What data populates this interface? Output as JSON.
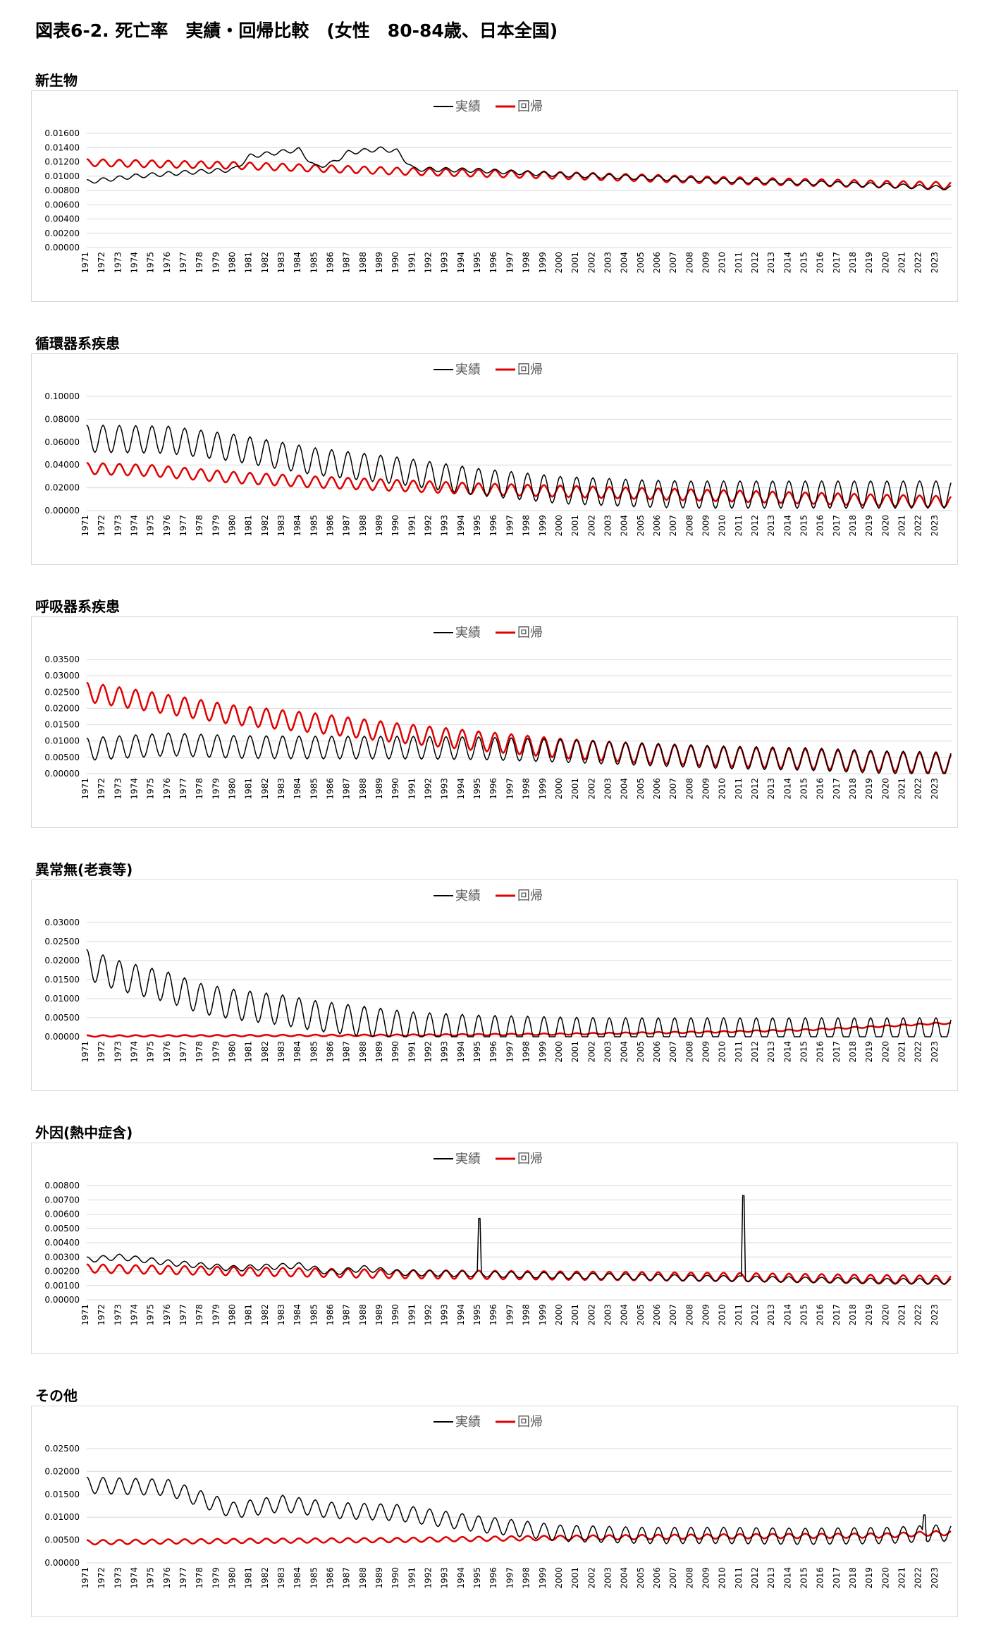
{
  "title": "図表6-2. 死亡率　実績・回帰比較　(女性　80-84歳、日本全国)",
  "legend": {
    "actual": "実績",
    "regression": "回帰"
  },
  "colors": {
    "actual": "#000000",
    "regression": "#e00000",
    "grid": "#d9d9d9"
  },
  "years": [
    "1971",
    "1972",
    "1973",
    "1974",
    "1975",
    "1976",
    "1977",
    "1978",
    "1979",
    "1980",
    "1981",
    "1982",
    "1983",
    "1984",
    "1985",
    "1986",
    "1987",
    "1988",
    "1989",
    "1990",
    "1991",
    "1992",
    "1993",
    "1994",
    "1995",
    "1996",
    "1997",
    "1998",
    "1999",
    "2000",
    "2001",
    "2002",
    "2003",
    "2004",
    "2005",
    "2006",
    "2007",
    "2008",
    "2009",
    "2010",
    "2011",
    "2012",
    "2013",
    "2014",
    "2015",
    "2016",
    "2017",
    "2018",
    "2019",
    "2020",
    "2021",
    "2022",
    "2023"
  ],
  "chart_data": [
    {
      "type": "line",
      "title": "新生物",
      "x_range": [
        "1971-01",
        "2023-12"
      ],
      "ylim": [
        0,
        0.016
      ],
      "yticks": [
        "0.01600",
        "0.01400",
        "0.01200",
        "0.01000",
        "0.00800",
        "0.00600",
        "0.00400",
        "0.00200",
        "0.00000"
      ],
      "grid": true,
      "legend_position": "top-center",
      "series": [
        {
          "name": "実績",
          "points": [
            [
              1971,
              0.0092
            ],
            [
              1974,
              0.01
            ],
            [
              1977,
              0.0105
            ],
            [
              1980,
              0.0109
            ],
            [
              1981,
              0.0128
            ],
            [
              1984,
              0.0137
            ],
            [
              1985,
              0.0113
            ],
            [
              1986,
              0.0118
            ],
            [
              1987,
              0.0133
            ],
            [
              1989,
              0.0138
            ],
            [
              1990,
              0.0135
            ],
            [
              1991,
              0.011
            ],
            [
              1995,
              0.0108
            ],
            [
              2000,
              0.0102
            ],
            [
              2005,
              0.0098
            ],
            [
              2010,
              0.0094
            ],
            [
              2015,
              0.0091
            ],
            [
              2020,
              0.0087
            ],
            [
              2023,
              0.0084
            ]
          ],
          "seasonal_amplitude": 0.0003
        },
        {
          "name": "回帰",
          "points": [
            [
              1971,
              0.0119
            ],
            [
              1980,
              0.0115
            ],
            [
              1990,
              0.0107
            ],
            [
              2000,
              0.0101
            ],
            [
              2010,
              0.0094
            ],
            [
              2023,
              0.0087
            ]
          ],
          "seasonal_amplitude": 0.0005
        }
      ]
    },
    {
      "type": "line",
      "title": "循環器系疾患",
      "x_range": [
        "1971-01",
        "2023-12"
      ],
      "ylim": [
        0,
        0.1
      ],
      "yticks": [
        "0.10000",
        "0.08000",
        "0.06000",
        "0.04000",
        "0.02000",
        "0.00000"
      ],
      "grid": true,
      "legend_position": "top-center",
      "series": [
        {
          "name": "実績",
          "points": [
            [
              1971,
              0.063
            ],
            [
              1976,
              0.062
            ],
            [
              1980,
              0.055
            ],
            [
              1985,
              0.043
            ],
            [
              1990,
              0.035
            ],
            [
              1995,
              0.025
            ],
            [
              2000,
              0.018
            ],
            [
              2005,
              0.015
            ],
            [
              2008,
              0.014
            ]
          ],
          "seasonal_amplitude": 0.012
        },
        {
          "name": "回帰",
          "points": [
            [
              1971,
              0.037
            ],
            [
              1975,
              0.035
            ],
            [
              1980,
              0.029
            ],
            [
              1985,
              0.025
            ],
            [
              1990,
              0.022
            ],
            [
              1995,
              0.019
            ],
            [
              2000,
              0.017
            ],
            [
              2005,
              0.015
            ],
            [
              2010,
              0.013
            ],
            [
              2015,
              0.011
            ],
            [
              2020,
              0.009
            ],
            [
              2023,
              0.008
            ]
          ],
          "seasonal_amplitude": 0.005
        }
      ]
    },
    {
      "type": "line",
      "title": "呼吸器系疾患",
      "x_range": [
        "1971-01",
        "2023-12"
      ],
      "ylim": [
        0,
        0.035
      ],
      "yticks": [
        "0.03500",
        "0.03000",
        "0.02500",
        "0.02000",
        "0.01500",
        "0.01000",
        "0.00500",
        "0.00000"
      ],
      "grid": true,
      "legend_position": "top-center",
      "series": [
        {
          "name": "実績",
          "points": [
            [
              1971,
              0.0075
            ],
            [
              1976,
              0.009
            ],
            [
              1980,
              0.0082
            ],
            [
              1985,
              0.008
            ],
            [
              1990,
              0.008
            ],
            [
              1995,
              0.0078
            ],
            [
              2000,
              0.007
            ],
            [
              2005,
              0.006
            ],
            [
              2010,
              0.005
            ],
            [
              2015,
              0.0045
            ],
            [
              2020,
              0.0035
            ],
            [
              2023,
              0.0032
            ]
          ],
          "seasonal_amplitude": 0.0035
        },
        {
          "name": "回帰",
          "points": [
            [
              1971,
              0.025
            ],
            [
              1975,
              0.022
            ],
            [
              1980,
              0.018
            ],
            [
              1985,
              0.0155
            ],
            [
              1990,
              0.0125
            ],
            [
              1995,
              0.01
            ],
            [
              2000,
              0.0078
            ],
            [
              2005,
              0.0062
            ],
            [
              2010,
              0.0052
            ],
            [
              2015,
              0.0045
            ],
            [
              2020,
              0.0037
            ],
            [
              2023,
              0.0032
            ]
          ],
          "seasonal_amplitude": 0.003
        }
      ]
    },
    {
      "type": "line",
      "title": "異常無(老衰等)",
      "x_range": [
        "1971-01",
        "2023-12"
      ],
      "ylim": [
        0,
        0.03
      ],
      "yticks": [
        "0.03000",
        "0.02500",
        "0.02000",
        "0.01500",
        "0.01000",
        "0.00500",
        "0.00000"
      ],
      "grid": true,
      "legend_position": "top-center",
      "series": [
        {
          "name": "実績",
          "points": [
            [
              1971,
              0.019
            ],
            [
              1973,
              0.016
            ],
            [
              1976,
              0.013
            ],
            [
              1978,
              0.01
            ],
            [
              1980,
              0.0085
            ],
            [
              1983,
              0.007
            ],
            [
              1985,
              0.0055
            ],
            [
              1987,
              0.0045
            ],
            [
              1989,
              0.0035
            ],
            [
              1991,
              0.0025
            ],
            [
              1995,
              0.0017
            ],
            [
              2000,
              0.0012
            ],
            [
              2003,
              0.001
            ]
          ],
          "seasonal_amplitude": 0.004
        },
        {
          "name": "回帰",
          "points": [
            [
              1971,
              0.0002
            ],
            [
              1990,
              0.0004
            ],
            [
              2000,
              0.0007
            ],
            [
              2010,
              0.0013
            ],
            [
              2015,
              0.0018
            ],
            [
              2020,
              0.0028
            ],
            [
              2023,
              0.0035
            ]
          ],
          "seasonal_amplitude": 0.0002
        }
      ]
    },
    {
      "type": "line",
      "title": "外因(熱中症含)",
      "x_range": [
        "1971-01",
        "2023-12"
      ],
      "ylim": [
        0,
        0.008
      ],
      "yticks": [
        "0.00800",
        "0.00700",
        "0.00600",
        "0.00500",
        "0.00400",
        "0.00300",
        "0.00200",
        "0.00100",
        "0.00000"
      ],
      "grid": true,
      "legend_position": "top-center",
      "spikes": [
        [
          1995.05,
          0.0057
        ],
        [
          2011.2,
          0.0073
        ]
      ],
      "series": [
        {
          "name": "実績",
          "points": [
            [
              1971,
              0.0028
            ],
            [
              1973,
              0.003
            ],
            [
              1976,
              0.0026
            ],
            [
              1980,
              0.0022
            ],
            [
              1984,
              0.0024
            ],
            [
              1986,
              0.0019
            ],
            [
              1988,
              0.0022
            ],
            [
              1990,
              0.0019
            ],
            [
              1995,
              0.0018
            ],
            [
              2000,
              0.0017
            ],
            [
              2005,
              0.0016
            ],
            [
              2010,
              0.0015
            ],
            [
              2015,
              0.0014
            ],
            [
              2020,
              0.0013
            ],
            [
              2023,
              0.0013
            ]
          ],
          "seasonal_amplitude": 0.0002
        },
        {
          "name": "回帰",
          "points": [
            [
              1971,
              0.0022
            ],
            [
              1980,
              0.002
            ],
            [
              1990,
              0.0018
            ],
            [
              2000,
              0.0017
            ],
            [
              2010,
              0.0016
            ],
            [
              2023,
              0.0014
            ]
          ],
          "seasonal_amplitude": 0.0003
        }
      ]
    },
    {
      "type": "line",
      "title": "その他",
      "x_range": [
        "1971-01",
        "2023-12"
      ],
      "ylim": [
        0,
        0.025
      ],
      "yticks": [
        "0.02500",
        "0.02000",
        "0.01500",
        "0.01000",
        "0.00500",
        "0.00000"
      ],
      "grid": true,
      "legend_position": "top-center",
      "spikes": [
        [
          2022.3,
          0.0105
        ]
      ],
      "series": [
        {
          "name": "実績",
          "points": [
            [
              1971,
              0.017
            ],
            [
              1976,
              0.0165
            ],
            [
              1980,
              0.0115
            ],
            [
              1983,
              0.013
            ],
            [
              1986,
              0.0115
            ],
            [
              1990,
              0.011
            ],
            [
              1995,
              0.0085
            ],
            [
              2000,
              0.0065
            ],
            [
              2005,
              0.006
            ],
            [
              2010,
              0.006
            ],
            [
              2015,
              0.0058
            ],
            [
              2020,
              0.006
            ],
            [
              2023,
              0.0065
            ]
          ],
          "seasonal_amplitude": 0.0018
        },
        {
          "name": "回帰",
          "points": [
            [
              1971,
              0.0045
            ],
            [
              1980,
              0.0048
            ],
            [
              1990,
              0.005
            ],
            [
              2000,
              0.0055
            ],
            [
              2010,
              0.0058
            ],
            [
              2020,
              0.006
            ],
            [
              2023,
              0.0065
            ]
          ],
          "seasonal_amplitude": 0.0005
        }
      ]
    }
  ]
}
